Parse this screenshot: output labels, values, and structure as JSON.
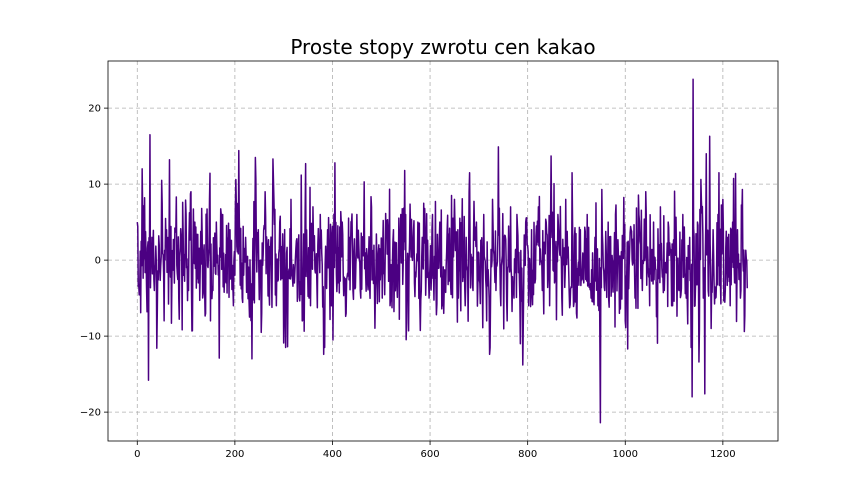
{
  "chart_data": {
    "type": "line",
    "title": "Proste stopy zwrotu cen kakao",
    "xlabel": "",
    "ylabel": "",
    "xlim": [
      -60,
      1313
    ],
    "ylim": [
      -23.8,
      26.2
    ],
    "x_ticks": [
      0,
      200,
      400,
      600,
      800,
      1000,
      1200
    ],
    "y_ticks": [
      -20,
      -10,
      0,
      10,
      20
    ],
    "x_tick_labels": [
      "0",
      "200",
      "400",
      "600",
      "800",
      "1000",
      "1200"
    ],
    "y_tick_labels": [
      "−20",
      "−10",
      "0",
      "10",
      "20"
    ],
    "grid": true,
    "color": "#4b0082",
    "n_points": 1251,
    "series": [
      {
        "points": [
          [
            0,
            5.0
          ],
          [
            5,
            -3.8
          ],
          [
            10,
            12.0
          ],
          [
            15,
            8.2
          ],
          [
            20,
            -6.8
          ],
          [
            23,
            -15.8
          ],
          [
            26,
            16.5
          ],
          [
            30,
            3.0
          ],
          [
            35,
            -4.0
          ],
          [
            40,
            -11.6
          ],
          [
            45,
            2.0
          ],
          [
            50,
            10.5
          ],
          [
            55,
            -8.0
          ],
          [
            60,
            4.0
          ],
          [
            66,
            13.2
          ],
          [
            70,
            -8.3
          ],
          [
            75,
            1.0
          ],
          [
            80,
            8.3
          ],
          [
            85,
            -5.0
          ],
          [
            90,
            3.0
          ],
          [
            95,
            -2.0
          ],
          [
            100,
            6.0
          ],
          [
            105,
            -4.0
          ],
          [
            110,
            9.0
          ],
          [
            113,
            -9.3
          ],
          [
            118,
            5.0
          ],
          [
            125,
            -3.0
          ],
          [
            132,
            6.8
          ],
          [
            140,
            -7.0
          ],
          [
            148,
            8.0
          ],
          [
            155,
            -4.0
          ],
          [
            162,
            5.0
          ],
          [
            168,
            -12.9
          ],
          [
            175,
            6.0
          ],
          [
            182,
            -3.0
          ],
          [
            190,
            4.0
          ],
          [
            197,
            -6.0
          ],
          [
            202,
            10.6
          ],
          [
            208,
            14.4
          ],
          [
            215,
            -5.0
          ],
          [
            222,
            3.0
          ],
          [
            230,
            -7.5
          ],
          [
            235,
            -13.0
          ],
          [
            242,
            13.5
          ],
          [
            248,
            4.0
          ],
          [
            255,
            -7.0
          ],
          [
            262,
            9.0
          ],
          [
            270,
            -4.0
          ],
          [
            278,
            13.3
          ],
          [
            285,
            -6.0
          ],
          [
            292,
            5.0
          ],
          [
            300,
            -10.9
          ],
          [
            308,
            -11.4
          ],
          [
            315,
            8.0
          ],
          [
            322,
            -3.0
          ],
          [
            330,
            2.0
          ],
          [
            338,
            -8.0
          ],
          [
            345,
            12.7
          ],
          [
            352,
            -5.0
          ],
          [
            360,
            7.0
          ],
          [
            368,
            -3.0
          ],
          [
            375,
            6.0
          ],
          [
            382,
            -12.4
          ],
          [
            390,
            4.0
          ],
          [
            398,
            -6.0
          ],
          [
            405,
            12.8
          ],
          [
            412,
            -3.0
          ],
          [
            420,
            5.0
          ],
          [
            428,
            -7.0
          ],
          [
            435,
            3.0
          ],
          [
            442,
            -4.0
          ],
          [
            450,
            6.0
          ],
          [
            458,
            -5.0
          ],
          [
            465,
            10.3
          ],
          [
            472,
            -3.0
          ],
          [
            480,
            7.0
          ],
          [
            488,
            -4.0
          ],
          [
            495,
            2.0
          ],
          [
            502,
            -5.0
          ],
          [
            510,
            3.0
          ],
          [
            518,
            -6.0
          ],
          [
            525,
            4.0
          ],
          [
            532,
            -3.0
          ],
          [
            540,
            6.0
          ],
          [
            548,
            11.8
          ],
          [
            552,
            -8.2
          ],
          [
            560,
            4.0
          ],
          [
            568,
            -3.0
          ],
          [
            575,
            5.0
          ],
          [
            582,
            -4.0
          ],
          [
            590,
            3.0
          ],
          [
            598,
            -5.0
          ],
          [
            605,
            6.0
          ],
          [
            612,
            -3.0
          ],
          [
            620,
            5.0
          ],
          [
            628,
            -7.0
          ],
          [
            635,
            4.0
          ],
          [
            642,
            -3.0
          ],
          [
            650,
            8.0
          ],
          [
            658,
            -5.0
          ],
          [
            665,
            3.0
          ],
          [
            672,
            -6.0
          ],
          [
            680,
            9.0
          ],
          [
            688,
            -4.0
          ],
          [
            695,
            5.0
          ],
          [
            702,
            -3.0
          ],
          [
            710,
            6.0
          ],
          [
            716,
            -8.0
          ],
          [
            722,
            -12.4
          ],
          [
            728,
            8.0
          ],
          [
            735,
            -4.0
          ],
          [
            740,
            14.9
          ],
          [
            745,
            -6.0
          ],
          [
            752,
            3.0
          ],
          [
            758,
            -8.0
          ],
          [
            765,
            7.0
          ],
          [
            772,
            -5.0
          ],
          [
            778,
            6.0
          ],
          [
            785,
            -11.0
          ],
          [
            790,
            -13.8
          ],
          [
            796,
            5.0
          ],
          [
            802,
            -6.0
          ],
          [
            808,
            4.0
          ],
          [
            815,
            -3.0
          ],
          [
            822,
            7.0
          ],
          [
            830,
            -4.0
          ],
          [
            838,
            5.0
          ],
          [
            845,
            -6.0
          ],
          [
            848,
            13.7
          ],
          [
            855,
            -3.0
          ],
          [
            862,
            6.0
          ],
          [
            870,
            -5.0
          ],
          [
            878,
            8.0
          ],
          [
            885,
            -4.0
          ],
          [
            892,
            5.0
          ],
          [
            900,
            -7.0
          ],
          [
            908,
            4.0
          ],
          [
            915,
            -3.0
          ],
          [
            922,
            6.0
          ],
          [
            930,
            -5.0
          ],
          [
            938,
            3.0
          ],
          [
            944,
            -6.0
          ],
          [
            949,
            -21.4
          ],
          [
            952,
            9.3
          ],
          [
            958,
            -4.0
          ],
          [
            965,
            5.0
          ],
          [
            972,
            -3.0
          ],
          [
            980,
            6.0
          ],
          [
            988,
            -7.0
          ],
          [
            995,
            3.0
          ],
          [
            1000,
            -8.0
          ],
          [
            1005,
            -11.7
          ],
          [
            1012,
            4.0
          ],
          [
            1020,
            -5.0
          ],
          [
            1028,
            6.0
          ],
          [
            1035,
            -4.0
          ],
          [
            1042,
            9.0
          ],
          [
            1050,
            -6.0
          ],
          [
            1058,
            5.0
          ],
          [
            1065,
            -3.0
          ],
          [
            1072,
            7.0
          ],
          [
            1080,
            -4.0
          ],
          [
            1088,
            5.0
          ],
          [
            1095,
            -6.0
          ],
          [
            1102,
            3.0
          ],
          [
            1110,
            -4.0
          ],
          [
            1118,
            6.0
          ],
          [
            1125,
            -5.0
          ],
          [
            1132,
            3.0
          ],
          [
            1137,
            -18.0
          ],
          [
            1139,
            23.8
          ],
          [
            1143,
            -6.0
          ],
          [
            1148,
            5.0
          ],
          [
            1151,
            -13.4
          ],
          [
            1155,
            10.6
          ],
          [
            1160,
            -5.0
          ],
          [
            1163,
            -17.6
          ],
          [
            1166,
            14.0
          ],
          [
            1170,
            -4.0
          ],
          [
            1173,
            16.3
          ],
          [
            1176,
            -9.0
          ],
          [
            1180,
            4.0
          ],
          [
            1185,
            -5.0
          ],
          [
            1190,
            6.0
          ],
          [
            1195,
            -3.0
          ],
          [
            1200,
            8.0
          ],
          [
            1205,
            -4.0
          ],
          [
            1210,
            3.0
          ],
          [
            1215,
            -6.0
          ],
          [
            1220,
            5.0
          ],
          [
            1225,
            -3.0
          ],
          [
            1230,
            4.0
          ],
          [
            1236,
            -5.0
          ],
          [
            1240,
            9.3
          ],
          [
            1244,
            -9.4
          ],
          [
            1247,
            1.3
          ],
          [
            1250,
            -3.7
          ]
        ]
      }
    ]
  }
}
